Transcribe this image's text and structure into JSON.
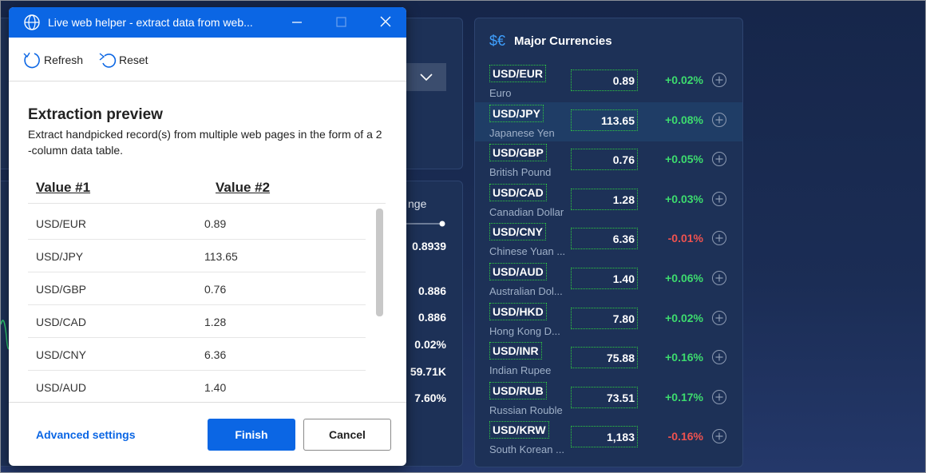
{
  "background": {
    "partial_texts": [
      "nge",
      "0.8939",
      "0.886",
      "0.886",
      "0.02%",
      "59.71K",
      "7.60%"
    ]
  },
  "currencies": {
    "icon": "$€",
    "title": "Major Currencies",
    "rows": [
      {
        "code": "USD/EUR",
        "name": "Euro",
        "value": "0.89",
        "change": "+0.02%"
      },
      {
        "code": "USD/JPY",
        "name": "Japanese Yen",
        "value": "113.65",
        "change": "+0.08%"
      },
      {
        "code": "USD/GBP",
        "name": "British Pound",
        "value": "0.76",
        "change": "+0.05%"
      },
      {
        "code": "USD/CAD",
        "name": "Canadian Dollar",
        "value": "1.28",
        "change": "+0.03%"
      },
      {
        "code": "USD/CNY",
        "name": "Chinese Yuan ...",
        "value": "6.36",
        "change": "-0.01%"
      },
      {
        "code": "USD/AUD",
        "name": "Australian Dol...",
        "value": "1.40",
        "change": "+0.06%"
      },
      {
        "code": "USD/HKD",
        "name": "Hong Kong D...",
        "value": "7.80",
        "change": "+0.02%"
      },
      {
        "code": "USD/INR",
        "name": "Indian Rupee",
        "value": "75.88",
        "change": "+0.16%"
      },
      {
        "code": "USD/RUB",
        "name": "Russian Rouble",
        "value": "73.51",
        "change": "+0.17%"
      },
      {
        "code": "USD/KRW",
        "name": "South Korean ...",
        "value": "1,183",
        "change": "-0.16%"
      }
    ]
  },
  "dialog": {
    "title": "Live web helper - extract data from web...",
    "toolbar": {
      "refresh": "Refresh",
      "reset": "Reset"
    },
    "heading": "Extraction preview",
    "description": "Extract handpicked record(s) from multiple web pages in the form of a 2 -column data table.",
    "table": {
      "columns": [
        "Value #1",
        "Value #2"
      ],
      "rows": [
        [
          "USD/EUR",
          "0.89"
        ],
        [
          "USD/JPY",
          "113.65"
        ],
        [
          "USD/GBP",
          "0.76"
        ],
        [
          "USD/CAD",
          "1.28"
        ],
        [
          "USD/CNY",
          "6.36"
        ],
        [
          "USD/AUD",
          "1.40"
        ]
      ]
    },
    "footer": {
      "link": "Advanced settings",
      "primary": "Finish",
      "secondary": "Cancel"
    }
  }
}
